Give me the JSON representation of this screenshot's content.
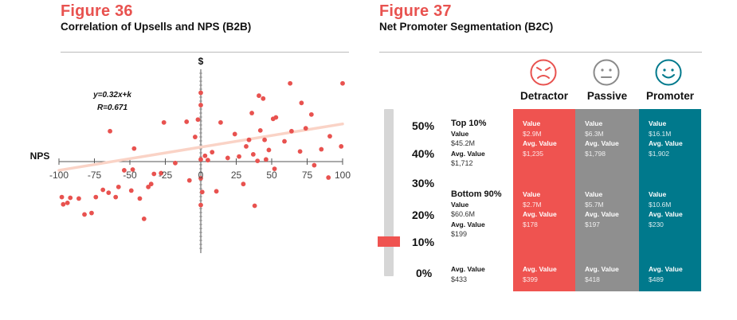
{
  "figure36": {
    "label": "Figure 36",
    "title": "Correlation of Upsells and NPS (B2B)",
    "equation": "y=0.32x+k",
    "r_value": "R=0.671",
    "y_axis_label": "$",
    "x_axis_label": "NPS",
    "x_ticks": [
      "-100",
      "-75",
      "-50",
      "-25",
      "0",
      "25",
      "50",
      "75",
      "100"
    ]
  },
  "chart_data": {
    "type": "scatter",
    "title": "Correlation of Upsells and NPS (B2B)",
    "xlabel": "NPS",
    "ylabel": "$",
    "xlim": [
      -100,
      100
    ],
    "ylim": [
      -10,
      10
    ],
    "grid": false,
    "legend": "none",
    "trendline": {
      "slope": 0.32,
      "intercept": 2.0,
      "x_range": [
        -100,
        100
      ],
      "color": "#fad3c6"
    },
    "point_color": "#e8524f",
    "points": [
      [
        -98,
        -4.9
      ],
      [
        -97,
        -5.9
      ],
      [
        -94,
        -5.7
      ],
      [
        -92,
        -5.0
      ],
      [
        -86,
        -5.1
      ],
      [
        -82,
        -7.3
      ],
      [
        -77,
        -7.1
      ],
      [
        -74,
        -4.9
      ],
      [
        -69,
        -3.9
      ],
      [
        -65,
        -4.3
      ],
      [
        -64,
        4.2
      ],
      [
        -60,
        -4.9
      ],
      [
        -58,
        -3.5
      ],
      [
        -54,
        -1.2
      ],
      [
        -49,
        -4.0
      ],
      [
        -48,
        -1.1
      ],
      [
        -47,
        1.8
      ],
      [
        -43,
        -5.1
      ],
      [
        -40,
        -7.9
      ],
      [
        -37,
        -3.5
      ],
      [
        -35,
        -3.1
      ],
      [
        -33,
        -1.7
      ],
      [
        -28,
        -1.6
      ],
      [
        -26,
        5.4
      ],
      [
        -18,
        -0.2
      ],
      [
        -10,
        5.5
      ],
      [
        -8,
        -2.6
      ],
      [
        -4,
        3.4
      ],
      [
        -2,
        5.8
      ],
      [
        0,
        0.3
      ],
      [
        0,
        7.8
      ],
      [
        0,
        9.5
      ],
      [
        0,
        -2.3
      ],
      [
        0,
        -6.0
      ],
      [
        1,
        -4.2
      ],
      [
        3,
        0.8
      ],
      [
        5,
        0.2
      ],
      [
        8,
        1.3
      ],
      [
        11,
        -4.1
      ],
      [
        14,
        5.4
      ],
      [
        19,
        0.5
      ],
      [
        24,
        3.8
      ],
      [
        27,
        0.7
      ],
      [
        30,
        -3.1
      ],
      [
        32,
        2.1
      ],
      [
        34,
        3.0
      ],
      [
        36,
        6.7
      ],
      [
        37,
        1.0
      ],
      [
        38,
        -6.1
      ],
      [
        40,
        0.1
      ],
      [
        41,
        9.1
      ],
      [
        42,
        4.3
      ],
      [
        44,
        8.7
      ],
      [
        45,
        3.0
      ],
      [
        46,
        0.3
      ],
      [
        48,
        1.6
      ],
      [
        51,
        5.9
      ],
      [
        52,
        -1.0
      ],
      [
        53,
        6.1
      ],
      [
        59,
        2.8
      ],
      [
        63,
        10.8
      ],
      [
        64,
        4.2
      ],
      [
        70,
        1.4
      ],
      [
        71,
        8.1
      ],
      [
        74,
        4.6
      ],
      [
        78,
        6.5
      ],
      [
        80,
        -0.5
      ],
      [
        85,
        1.7
      ],
      [
        90,
        -2.2
      ],
      [
        91,
        3.5
      ],
      [
        99,
        2.1
      ],
      [
        100,
        10.8
      ]
    ]
  },
  "figure37": {
    "label": "Figure 37",
    "title": "Net Promoter Segmentation (B2C)",
    "scale_ticks": [
      "50%",
      "40%",
      "30%",
      "20%",
      "10%",
      "0%"
    ],
    "marker_value": "10%",
    "segments": {
      "top": {
        "title": "Top 10%",
        "value_label": "Value",
        "value": "$45.2M",
        "avg_label": "Avg. Value",
        "avg": "$1,712"
      },
      "bottom": {
        "title": "Bottom 90%",
        "value_label": "Value",
        "value": "$60.6M",
        "avg_label": "Avg. Value",
        "avg": "$199"
      },
      "all": {
        "avg_label": "Avg. Value",
        "avg": "$433"
      }
    },
    "columns": [
      {
        "name": "Detractor",
        "face_icon": "angry-face-icon",
        "color": "#ef5350",
        "face_color": "#e8524f",
        "top": {
          "value_label": "Value",
          "value": "$2.9M",
          "avg_label": "Avg. Value",
          "avg": "$1,235"
        },
        "bottom": {
          "value_label": "Value",
          "value": "$2.7M",
          "avg_label": "Avg. Value",
          "avg": "$178"
        },
        "all": {
          "avg_label": "Avg. Value",
          "avg": "$399"
        }
      },
      {
        "name": "Passive",
        "face_icon": "neutral-face-icon",
        "color": "#8f8f8f",
        "face_color": "#8a8a8a",
        "top": {
          "value_label": "Value",
          "value": "$6.3M",
          "avg_label": "Avg. Value",
          "avg": "$1,798"
        },
        "bottom": {
          "value_label": "Value",
          "value": "$5.7M",
          "avg_label": "Avg. Value",
          "avg": "$197"
        },
        "all": {
          "avg_label": "Avg. Value",
          "avg": "$418"
        }
      },
      {
        "name": "Promoter",
        "face_icon": "smiling-face-icon",
        "color": "#00798c",
        "face_color": "#00798c",
        "top": {
          "value_label": "Value",
          "value": "$16.1M",
          "avg_label": "Avg. Value",
          "avg": "$1,902"
        },
        "bottom": {
          "value_label": "Value",
          "value": "$10.6M",
          "avg_label": "Avg. Value",
          "avg": "$230"
        },
        "all": {
          "avg_label": "Avg. Value",
          "avg": "$489"
        }
      }
    ]
  }
}
